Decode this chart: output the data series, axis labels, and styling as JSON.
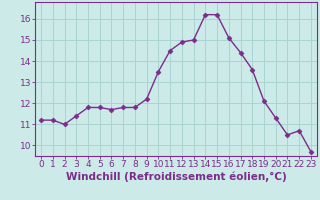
{
  "x": [
    0,
    1,
    2,
    3,
    4,
    5,
    6,
    7,
    8,
    9,
    10,
    11,
    12,
    13,
    14,
    15,
    16,
    17,
    18,
    19,
    20,
    21,
    22,
    23
  ],
  "y": [
    11.2,
    11.2,
    11.0,
    11.4,
    11.8,
    11.8,
    11.7,
    11.8,
    11.8,
    12.2,
    13.5,
    14.5,
    14.9,
    15.0,
    16.2,
    16.2,
    15.1,
    14.4,
    13.6,
    12.1,
    11.3,
    10.5,
    10.7,
    9.7
  ],
  "line_color": "#7b2d8b",
  "marker": "D",
  "marker_size": 2.5,
  "bg_color": "#cceae7",
  "grid_color": "#aad4d0",
  "xlabel": "Windchill (Refroidissement éolien,°C)",
  "xlabel_fontsize": 7.5,
  "tick_fontsize": 6.5,
  "ylim": [
    9.5,
    16.8
  ],
  "yticks": [
    10,
    11,
    12,
    13,
    14,
    15,
    16
  ],
  "line_width": 1.0,
  "spine_color": "#7b2d8b"
}
